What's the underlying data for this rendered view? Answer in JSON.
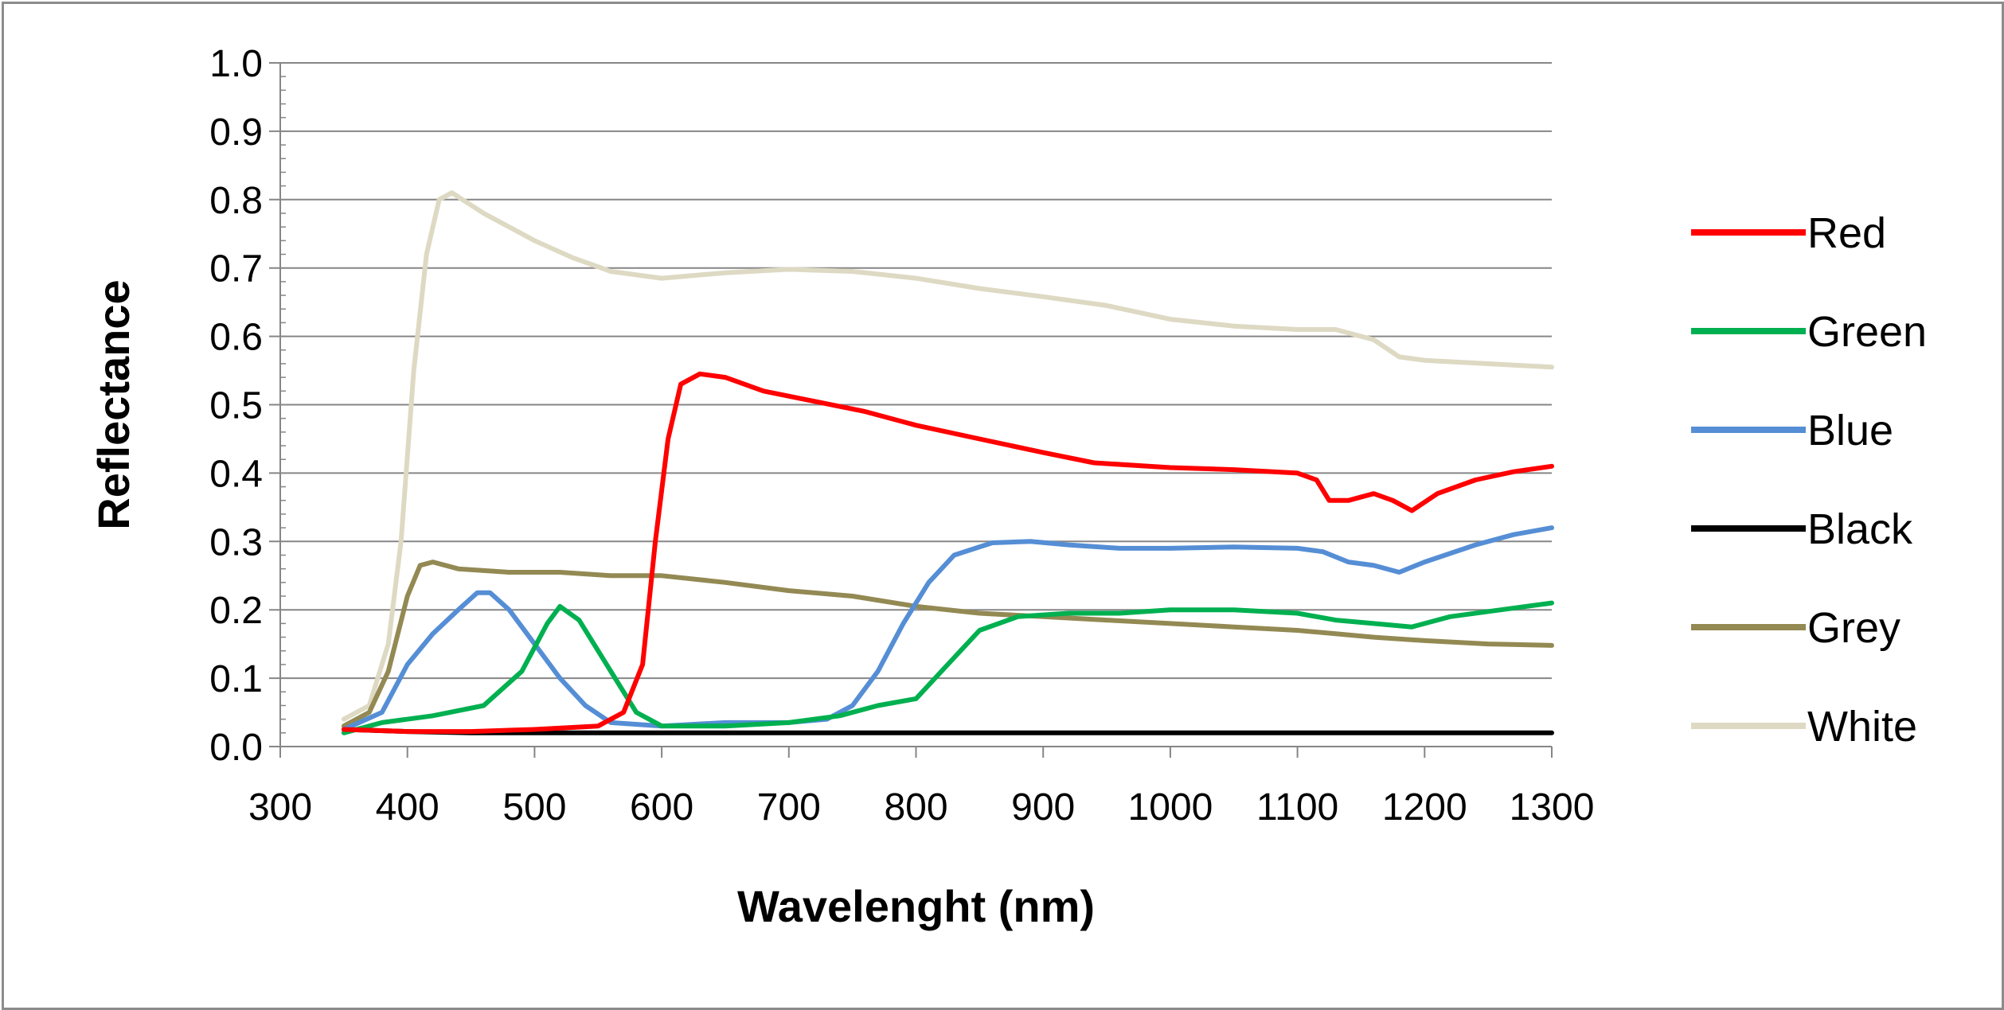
{
  "chart_data": {
    "type": "line",
    "title": "",
    "xlabel": "Wavelenght (nm)",
    "ylabel": "Reflectance",
    "xlim": [
      300,
      1300
    ],
    "ylim": [
      0.0,
      1.0
    ],
    "xticks": [
      "300",
      "400",
      "500",
      "600",
      "700",
      "800",
      "900",
      "1000",
      "1100",
      "1200",
      "1300"
    ],
    "yticks": [
      "0.0",
      "0.1",
      "0.2",
      "0.3",
      "0.4",
      "0.5",
      "0.6",
      "0.7",
      "0.8",
      "0.9",
      "1.0"
    ],
    "grid": true,
    "legend_position": "right",
    "series": [
      {
        "name": "Red",
        "color": "#ff0000",
        "points": [
          [
            350,
            0.025
          ],
          [
            400,
            0.022
          ],
          [
            450,
            0.022
          ],
          [
            500,
            0.025
          ],
          [
            550,
            0.03
          ],
          [
            570,
            0.05
          ],
          [
            585,
            0.12
          ],
          [
            595,
            0.3
          ],
          [
            605,
            0.45
          ],
          [
            615,
            0.53
          ],
          [
            630,
            0.545
          ],
          [
            650,
            0.54
          ],
          [
            680,
            0.52
          ],
          [
            720,
            0.505
          ],
          [
            760,
            0.49
          ],
          [
            800,
            0.47
          ],
          [
            850,
            0.45
          ],
          [
            900,
            0.43
          ],
          [
            940,
            0.415
          ],
          [
            1000,
            0.408
          ],
          [
            1050,
            0.405
          ],
          [
            1100,
            0.4
          ],
          [
            1115,
            0.39
          ],
          [
            1125,
            0.36
          ],
          [
            1140,
            0.36
          ],
          [
            1160,
            0.37
          ],
          [
            1175,
            0.36
          ],
          [
            1190,
            0.345
          ],
          [
            1210,
            0.37
          ],
          [
            1240,
            0.39
          ],
          [
            1270,
            0.402
          ],
          [
            1300,
            0.41
          ]
        ]
      },
      {
        "name": "Green",
        "color": "#00b050",
        "points": [
          [
            350,
            0.02
          ],
          [
            380,
            0.035
          ],
          [
            420,
            0.045
          ],
          [
            460,
            0.06
          ],
          [
            490,
            0.11
          ],
          [
            510,
            0.18
          ],
          [
            520,
            0.205
          ],
          [
            535,
            0.185
          ],
          [
            560,
            0.11
          ],
          [
            580,
            0.05
          ],
          [
            600,
            0.03
          ],
          [
            650,
            0.03
          ],
          [
            700,
            0.035
          ],
          [
            740,
            0.045
          ],
          [
            770,
            0.06
          ],
          [
            800,
            0.07
          ],
          [
            820,
            0.11
          ],
          [
            850,
            0.17
          ],
          [
            880,
            0.19
          ],
          [
            920,
            0.195
          ],
          [
            960,
            0.195
          ],
          [
            1000,
            0.2
          ],
          [
            1050,
            0.2
          ],
          [
            1100,
            0.195
          ],
          [
            1130,
            0.185
          ],
          [
            1160,
            0.18
          ],
          [
            1190,
            0.175
          ],
          [
            1220,
            0.19
          ],
          [
            1260,
            0.2
          ],
          [
            1300,
            0.21
          ]
        ]
      },
      {
        "name": "Blue",
        "color": "#558ed5",
        "points": [
          [
            350,
            0.025
          ],
          [
            380,
            0.05
          ],
          [
            400,
            0.12
          ],
          [
            420,
            0.165
          ],
          [
            440,
            0.2
          ],
          [
            455,
            0.225
          ],
          [
            465,
            0.225
          ],
          [
            480,
            0.2
          ],
          [
            500,
            0.15
          ],
          [
            520,
            0.1
          ],
          [
            540,
            0.06
          ],
          [
            560,
            0.035
          ],
          [
            600,
            0.03
          ],
          [
            650,
            0.035
          ],
          [
            700,
            0.035
          ],
          [
            730,
            0.04
          ],
          [
            750,
            0.06
          ],
          [
            770,
            0.11
          ],
          [
            790,
            0.18
          ],
          [
            810,
            0.24
          ],
          [
            830,
            0.28
          ],
          [
            860,
            0.298
          ],
          [
            890,
            0.3
          ],
          [
            920,
            0.295
          ],
          [
            960,
            0.29
          ],
          [
            1000,
            0.29
          ],
          [
            1050,
            0.292
          ],
          [
            1100,
            0.29
          ],
          [
            1120,
            0.285
          ],
          [
            1140,
            0.27
          ],
          [
            1160,
            0.265
          ],
          [
            1180,
            0.255
          ],
          [
            1200,
            0.27
          ],
          [
            1240,
            0.295
          ],
          [
            1270,
            0.31
          ],
          [
            1300,
            0.32
          ]
        ]
      },
      {
        "name": "Black",
        "color": "#000000",
        "points": [
          [
            350,
            0.025
          ],
          [
            400,
            0.022
          ],
          [
            450,
            0.02
          ],
          [
            500,
            0.02
          ],
          [
            600,
            0.02
          ],
          [
            700,
            0.02
          ],
          [
            800,
            0.02
          ],
          [
            900,
            0.02
          ],
          [
            1000,
            0.02
          ],
          [
            1100,
            0.02
          ],
          [
            1200,
            0.02
          ],
          [
            1300,
            0.02
          ]
        ]
      },
      {
        "name": "Grey",
        "color": "#938953",
        "points": [
          [
            350,
            0.03
          ],
          [
            370,
            0.05
          ],
          [
            385,
            0.11
          ],
          [
            400,
            0.22
          ],
          [
            410,
            0.265
          ],
          [
            420,
            0.27
          ],
          [
            440,
            0.26
          ],
          [
            480,
            0.255
          ],
          [
            520,
            0.255
          ],
          [
            560,
            0.25
          ],
          [
            600,
            0.25
          ],
          [
            650,
            0.24
          ],
          [
            700,
            0.228
          ],
          [
            750,
            0.22
          ],
          [
            800,
            0.205
          ],
          [
            850,
            0.195
          ],
          [
            900,
            0.19
          ],
          [
            950,
            0.185
          ],
          [
            1000,
            0.18
          ],
          [
            1050,
            0.175
          ],
          [
            1100,
            0.17
          ],
          [
            1130,
            0.165
          ],
          [
            1160,
            0.16
          ],
          [
            1200,
            0.155
          ],
          [
            1250,
            0.15
          ],
          [
            1300,
            0.148
          ]
        ]
      },
      {
        "name": "White",
        "color": "#ddd9c3",
        "points": [
          [
            350,
            0.04
          ],
          [
            370,
            0.06
          ],
          [
            385,
            0.15
          ],
          [
            395,
            0.3
          ],
          [
            405,
            0.55
          ],
          [
            415,
            0.72
          ],
          [
            425,
            0.8
          ],
          [
            435,
            0.81
          ],
          [
            460,
            0.78
          ],
          [
            500,
            0.74
          ],
          [
            530,
            0.715
          ],
          [
            560,
            0.695
          ],
          [
            600,
            0.685
          ],
          [
            650,
            0.693
          ],
          [
            700,
            0.698
          ],
          [
            750,
            0.695
          ],
          [
            800,
            0.685
          ],
          [
            850,
            0.67
          ],
          [
            900,
            0.658
          ],
          [
            950,
            0.645
          ],
          [
            1000,
            0.625
          ],
          [
            1050,
            0.615
          ],
          [
            1100,
            0.61
          ],
          [
            1130,
            0.61
          ],
          [
            1160,
            0.595
          ],
          [
            1180,
            0.57
          ],
          [
            1200,
            0.565
          ],
          [
            1250,
            0.56
          ],
          [
            1300,
            0.555
          ]
        ]
      }
    ]
  }
}
